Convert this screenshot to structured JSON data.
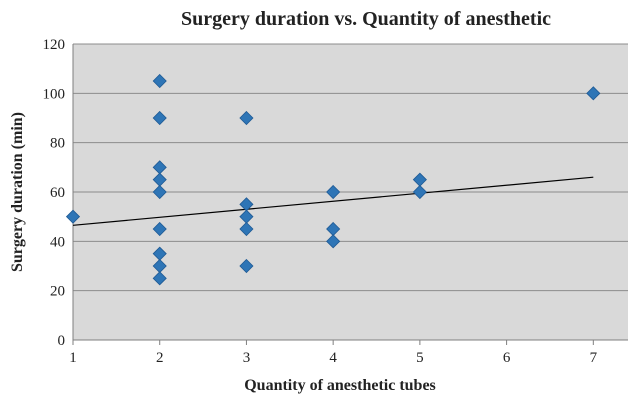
{
  "chart_data": {
    "type": "scatter",
    "title": "Surgery duration vs. Quantity of anesthetic",
    "xlabel": "Quantity of anesthetic tubes",
    "ylabel": "Surgery duration (min)",
    "xlim": [
      1,
      7.4
    ],
    "ylim": [
      0,
      120
    ],
    "x_ticks": [
      1,
      2,
      3,
      4,
      5,
      6,
      7
    ],
    "y_ticks": [
      0,
      20,
      40,
      60,
      80,
      100,
      120
    ],
    "grid": "horizontal",
    "plot_background": "#d9d9d9",
    "marker_color": "#2e75b6",
    "trendline_color": "#000000",
    "points": [
      {
        "x": 1,
        "y": 50
      },
      {
        "x": 2,
        "y": 105
      },
      {
        "x": 2,
        "y": 90
      },
      {
        "x": 2,
        "y": 70
      },
      {
        "x": 2,
        "y": 65
      },
      {
        "x": 2,
        "y": 60
      },
      {
        "x": 2,
        "y": 45
      },
      {
        "x": 2,
        "y": 35
      },
      {
        "x": 2,
        "y": 30
      },
      {
        "x": 2,
        "y": 25
      },
      {
        "x": 3,
        "y": 90
      },
      {
        "x": 3,
        "y": 55
      },
      {
        "x": 3,
        "y": 50
      },
      {
        "x": 3,
        "y": 45
      },
      {
        "x": 3,
        "y": 30
      },
      {
        "x": 4,
        "y": 60
      },
      {
        "x": 4,
        "y": 45
      },
      {
        "x": 4,
        "y": 40
      },
      {
        "x": 5,
        "y": 65
      },
      {
        "x": 5,
        "y": 60
      },
      {
        "x": 7,
        "y": 100
      }
    ],
    "trendline": {
      "x": [
        1,
        7
      ],
      "y": [
        46.5,
        66
      ]
    }
  }
}
